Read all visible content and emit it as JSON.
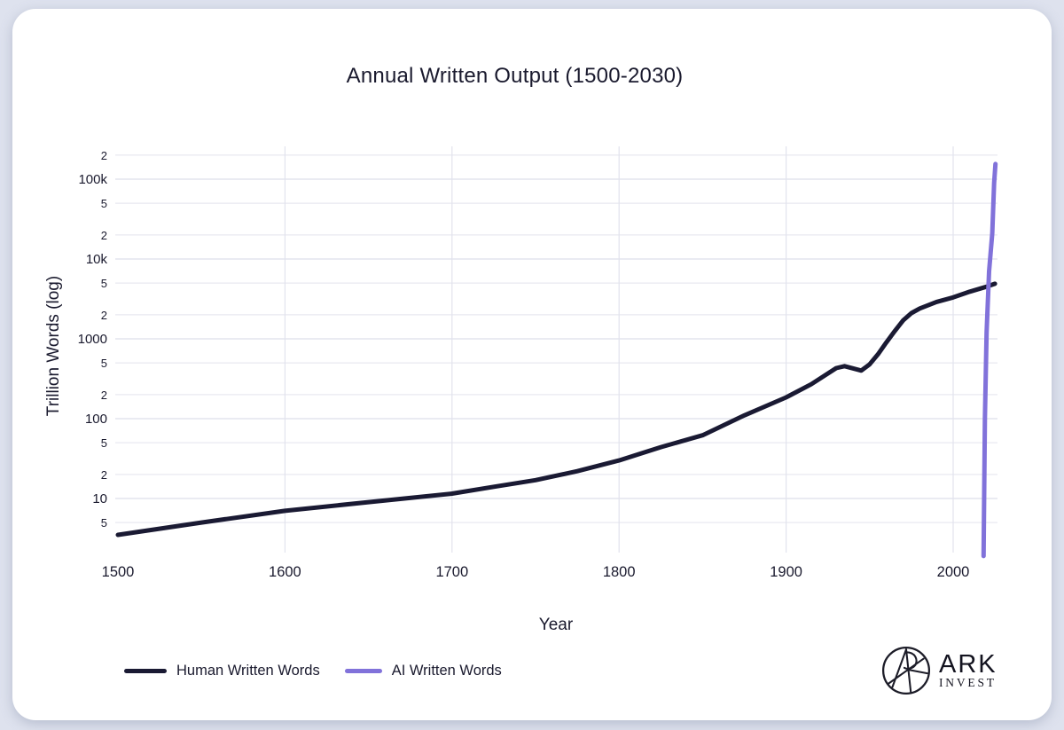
{
  "page": {
    "background_color": "#dee2ee",
    "card_color": "#ffffff"
  },
  "chart_data": {
    "type": "line",
    "title": "Annual Written Output (1500-2030)",
    "xlabel": "Year",
    "ylabel": "Trillion Words (log)",
    "y_scale": "log",
    "x_domain": [
      1500,
      2030
    ],
    "y_domain": [
      2.5,
      250000
    ],
    "grid": true,
    "legend_position": "bottom-left",
    "x_ticks": [
      {
        "value": 1500,
        "label": "1500",
        "gridline": false
      },
      {
        "value": 1600,
        "label": "1600",
        "gridline": true
      },
      {
        "value": 1700,
        "label": "1700",
        "gridline": true
      },
      {
        "value": 1800,
        "label": "1800",
        "gridline": true
      },
      {
        "value": 1900,
        "label": "1900",
        "gridline": true
      },
      {
        "value": 2000,
        "label": "2000",
        "gridline": true
      }
    ],
    "y_ticks": [
      {
        "value": 5,
        "label": "5",
        "major": false
      },
      {
        "value": 10,
        "label": "10",
        "major": true
      },
      {
        "value": 20,
        "label": "2",
        "major": false
      },
      {
        "value": 50,
        "label": "5",
        "major": false
      },
      {
        "value": 100,
        "label": "100",
        "major": true
      },
      {
        "value": 200,
        "label": "2",
        "major": false
      },
      {
        "value": 500,
        "label": "5",
        "major": false
      },
      {
        "value": 1000,
        "label": "1000",
        "major": true
      },
      {
        "value": 2000,
        "label": "2",
        "major": false
      },
      {
        "value": 5000,
        "label": "5",
        "major": false
      },
      {
        "value": 10000,
        "label": "10k",
        "major": true
      },
      {
        "value": 20000,
        "label": "2",
        "major": false
      },
      {
        "value": 50000,
        "label": "5",
        "major": false
      },
      {
        "value": 100000,
        "label": "100k",
        "major": true
      },
      {
        "value": 200000,
        "label": "2",
        "major": false
      }
    ],
    "series": [
      {
        "name": "Human Written Words",
        "color": "#1a1a33",
        "points": [
          [
            1500,
            3.5
          ],
          [
            1550,
            5
          ],
          [
            1600,
            7
          ],
          [
            1650,
            9
          ],
          [
            1700,
            11.5
          ],
          [
            1725,
            14
          ],
          [
            1750,
            17
          ],
          [
            1775,
            22
          ],
          [
            1800,
            30
          ],
          [
            1825,
            44
          ],
          [
            1850,
            62
          ],
          [
            1875,
            110
          ],
          [
            1900,
            185
          ],
          [
            1915,
            270
          ],
          [
            1930,
            430
          ],
          [
            1935,
            455
          ],
          [
            1945,
            400
          ],
          [
            1950,
            480
          ],
          [
            1955,
            640
          ],
          [
            1960,
            900
          ],
          [
            1965,
            1250
          ],
          [
            1970,
            1700
          ],
          [
            1975,
            2100
          ],
          [
            1980,
            2400
          ],
          [
            1990,
            2900
          ],
          [
            2000,
            3300
          ],
          [
            2010,
            3900
          ],
          [
            2020,
            4500
          ],
          [
            2025,
            4900
          ]
        ]
      },
      {
        "name": "AI Written Words",
        "color": "#8172da",
        "points": [
          [
            2018.2,
            1.9
          ],
          [
            2019,
            100
          ],
          [
            2020,
            1200
          ],
          [
            2021.5,
            7000
          ],
          [
            2023.4,
            21000
          ],
          [
            2024.5,
            90000
          ],
          [
            2025.3,
            155000
          ]
        ]
      }
    ]
  },
  "branding": {
    "brand": "ARK",
    "brand_sub": "INVEST"
  }
}
